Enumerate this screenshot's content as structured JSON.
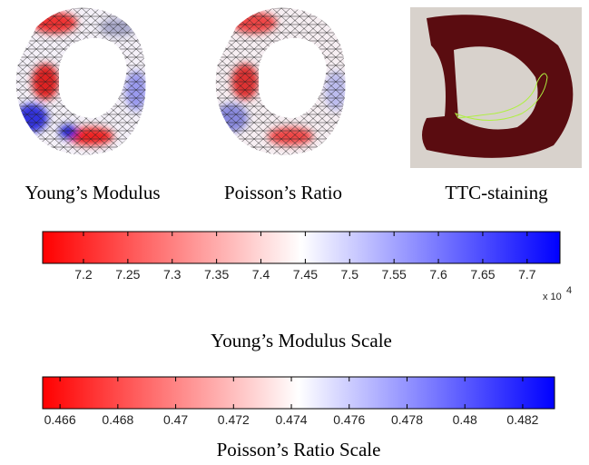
{
  "panels": [
    {
      "caption": "Young’s Modulus"
    },
    {
      "caption": "Poisson’s Ratio"
    },
    {
      "caption": "TTC-staining"
    }
  ],
  "colorbars": [
    {
      "title": "Young’s Modulus Scale",
      "lim": [
        7.154,
        7.737
      ],
      "ticks": [
        7.2,
        7.25,
        7.3,
        7.35,
        7.4,
        7.45,
        7.5,
        7.55,
        7.6,
        7.65,
        7.7
      ],
      "multiplier": {
        "base": "x 10",
        "exponent": "4"
      }
    },
    {
      "title": "Poisson’s Ratio Scale",
      "lim": [
        0.4654,
        0.4831
      ],
      "ticks": [
        0.466,
        0.468,
        0.47,
        0.472,
        0.474,
        0.476,
        0.478,
        0.48,
        0.482
      ]
    }
  ]
}
